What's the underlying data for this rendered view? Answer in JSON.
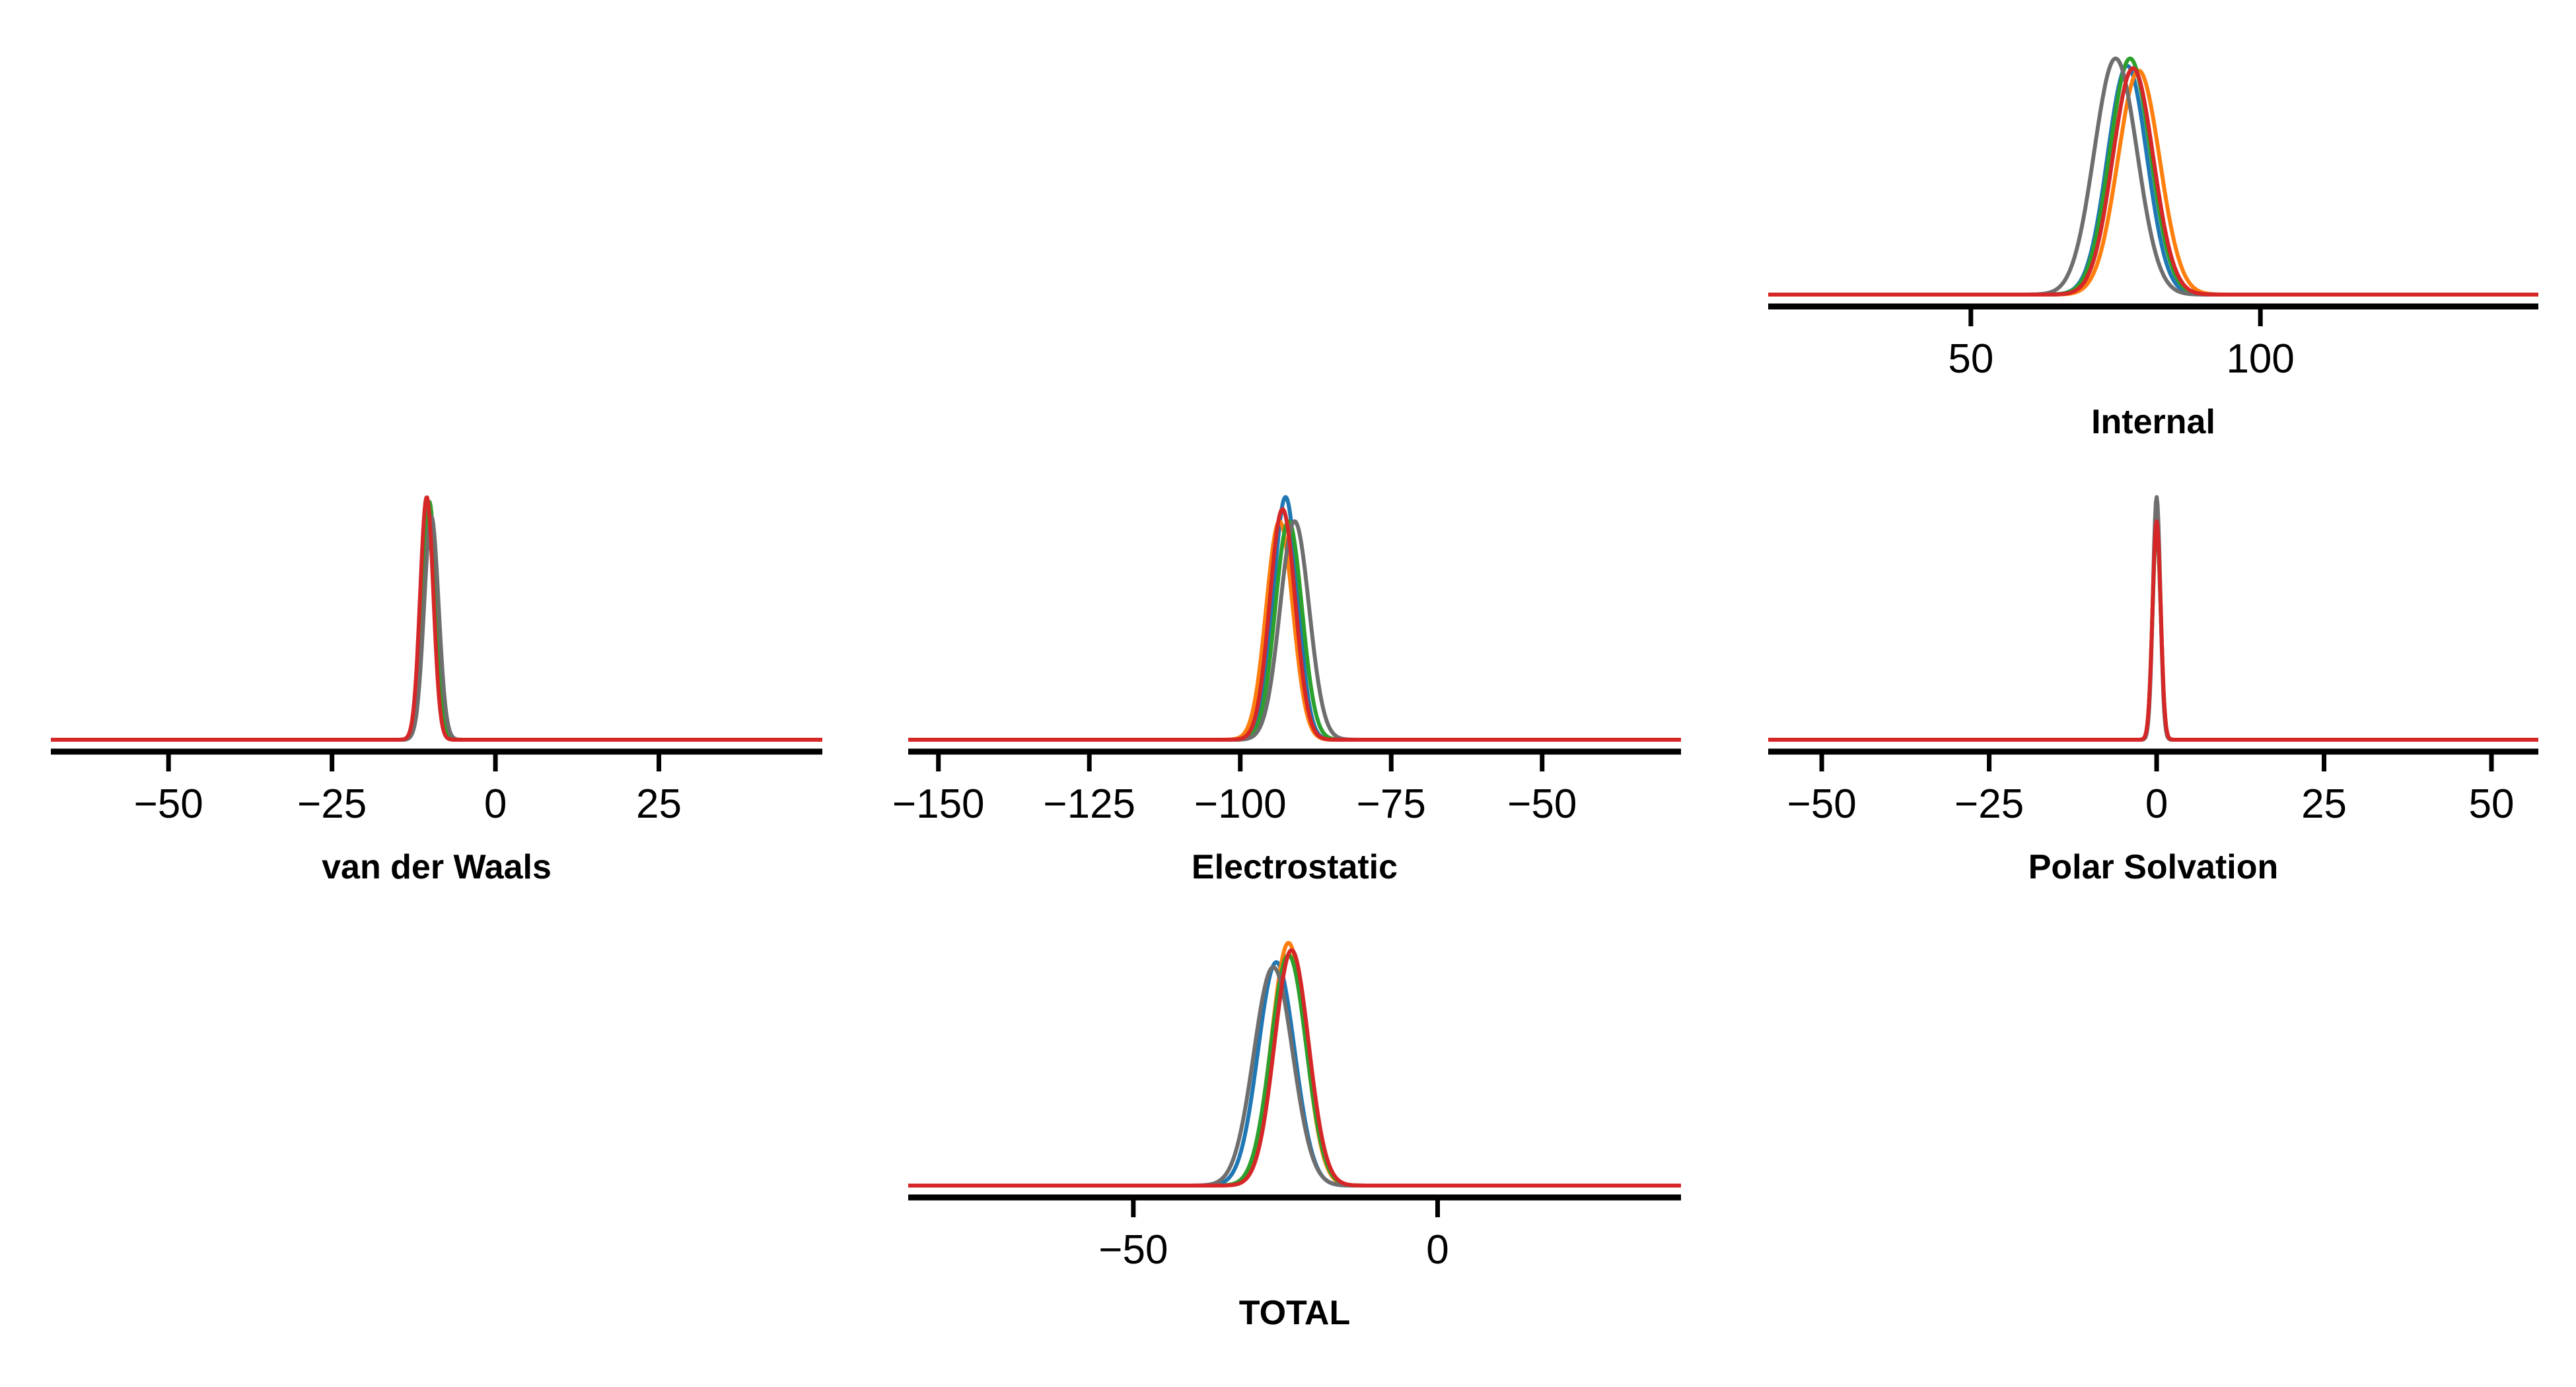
{
  "series_colors": [
    "#1f77b4",
    "#ff7f0e",
    "#2ca02c",
    "#6e6e6e",
    "#d62728"
  ],
  "chart_data": [
    {
      "type": "line",
      "xlabel": "Internal",
      "xlim": [
        15,
        148
      ],
      "xticks": [
        50,
        100
      ],
      "xticklabels": [
        "50",
        "100"
      ],
      "series": [
        {
          "color": "#1f77b4",
          "center": 77,
          "width": 3.4,
          "peak": 0.94
        },
        {
          "color": "#ff7f0e",
          "center": 79,
          "width": 3.6,
          "peak": 0.92
        },
        {
          "color": "#2ca02c",
          "center": 77.5,
          "width": 3.5,
          "peak": 0.97
        },
        {
          "color": "#6e6e6e",
          "center": 75,
          "width": 3.7,
          "peak": 0.97
        },
        {
          "color": "#d62728",
          "center": 78,
          "width": 3.5,
          "peak": 0.93
        }
      ]
    },
    {
      "type": "line",
      "xlabel": "van der Waals",
      "xlim": [
        -68,
        50
      ],
      "xticks": [
        -50,
        -25,
        0,
        25
      ],
      "xticklabels": [
        "−50",
        "−25",
        "0",
        "25"
      ],
      "series": [
        {
          "color": "#1f77b4",
          "center": -10.2,
          "width": 1.0,
          "peak": 0.98
        },
        {
          "color": "#ff7f0e",
          "center": -10.3,
          "width": 1.0,
          "peak": 0.97
        },
        {
          "color": "#2ca02c",
          "center": -10.1,
          "width": 1.0,
          "peak": 0.98
        },
        {
          "color": "#6e6e6e",
          "center": -9.8,
          "width": 1.1,
          "peak": 0.92
        },
        {
          "color": "#d62728",
          "center": -10.5,
          "width": 1.0,
          "peak": 1.0
        }
      ]
    },
    {
      "type": "line",
      "xlabel": "Electrostatic",
      "xlim": [
        -155,
        -27
      ],
      "xticks": [
        -150,
        -125,
        -100,
        -75,
        -50
      ],
      "xticklabels": [
        "−150",
        "−125",
        "−100",
        "−75",
        "−50"
      ],
      "series": [
        {
          "color": "#1f77b4",
          "center": -92.5,
          "width": 2.0,
          "peak": 1.0
        },
        {
          "color": "#ff7f0e",
          "center": -93.5,
          "width": 2.2,
          "peak": 0.9
        },
        {
          "color": "#2ca02c",
          "center": -92.0,
          "width": 2.2,
          "peak": 0.9
        },
        {
          "color": "#6e6e6e",
          "center": -91.0,
          "width": 2.4,
          "peak": 0.9
        },
        {
          "color": "#d62728",
          "center": -93.0,
          "width": 2.1,
          "peak": 0.95
        }
      ]
    },
    {
      "type": "line",
      "xlabel": "Polar Solvation",
      "xlim": [
        -58,
        57
      ],
      "xticks": [
        -50,
        -25,
        0,
        25,
        50
      ],
      "xticklabels": [
        "−50",
        "−25",
        "0",
        "25",
        "50"
      ],
      "series": [
        {
          "color": "#1f77b4",
          "center": 0,
          "width": 0.6,
          "peak": 0.9
        },
        {
          "color": "#ff7f0e",
          "center": 0,
          "width": 0.6,
          "peak": 0.92
        },
        {
          "color": "#2ca02c",
          "center": 0,
          "width": 0.6,
          "peak": 0.88
        },
        {
          "color": "#6e6e6e",
          "center": 0,
          "width": 0.55,
          "peak": 1.0
        },
        {
          "color": "#d62728",
          "center": 0,
          "width": 0.6,
          "peak": 0.9
        }
      ]
    },
    {
      "type": "line",
      "xlabel": "TOTAL",
      "xlim": [
        -87,
        40
      ],
      "xticks": [
        -50,
        0
      ],
      "xticklabels": [
        "−50",
        "0"
      ],
      "series": [
        {
          "color": "#1f77b4",
          "center": -26.5,
          "width": 3.0,
          "peak": 0.92
        },
        {
          "color": "#ff7f0e",
          "center": -24.5,
          "width": 2.8,
          "peak": 1.0
        },
        {
          "color": "#2ca02c",
          "center": -24.5,
          "width": 2.9,
          "peak": 0.95
        },
        {
          "color": "#6e6e6e",
          "center": -27.0,
          "width": 3.2,
          "peak": 0.9
        },
        {
          "color": "#d62728",
          "center": -24.0,
          "width": 2.8,
          "peak": 0.97
        }
      ]
    }
  ]
}
